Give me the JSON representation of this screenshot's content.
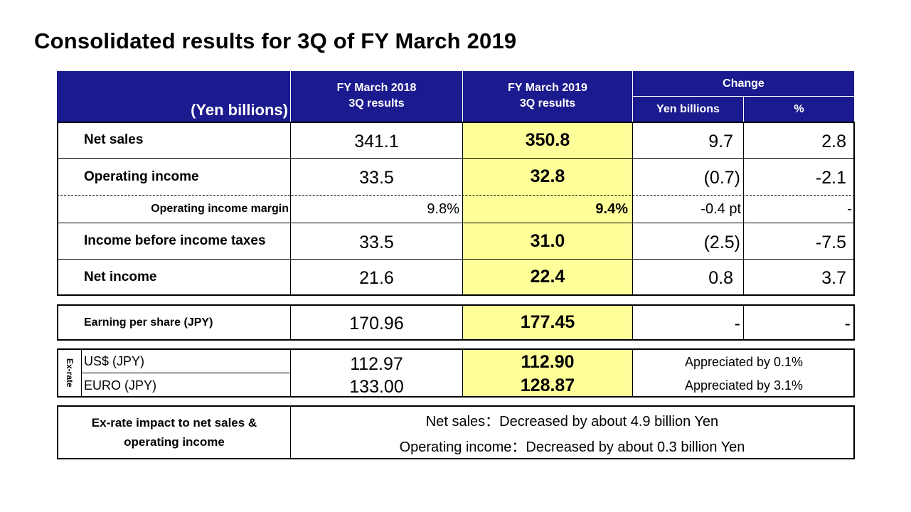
{
  "title": "Consolidated results for 3Q of FY March 2019",
  "header": {
    "unit": "(Yen billions)",
    "col_2018": [
      "FY March 2018",
      "3Q results"
    ],
    "col_2019": [
      "FY March 2019",
      "3Q results"
    ],
    "change": "Change",
    "change_yen": "Yen billions",
    "change_pct": "%"
  },
  "rows": [
    {
      "label": "Net sales",
      "fy2018": "341.1",
      "fy2019": "350.8",
      "change_yen": "9.7",
      "change_pct": "2.8"
    },
    {
      "label": "Operating income",
      "fy2018": "33.5",
      "fy2019": "32.8",
      "change_yen": "(0.7)",
      "change_pct": "-2.1"
    },
    {
      "label": "Operating income margin",
      "fy2018": "9.8%",
      "fy2019": "9.4%",
      "change_yen": "-0.4 pt",
      "change_pct": "-"
    },
    {
      "label": "Income before income taxes",
      "fy2018": "33.5",
      "fy2019": "31.0",
      "change_yen": "(2.5)",
      "change_pct": "-7.5"
    },
    {
      "label": "Net income",
      "fy2018": "21.6",
      "fy2019": "22.4",
      "change_yen": "0.8",
      "change_pct": "3.7"
    }
  ],
  "eps": {
    "label": "Earning per share (JPY)",
    "fy2018": "170.96",
    "fy2019": "177.45",
    "change_yen": "-",
    "change_pct": "-"
  },
  "exrate": {
    "side_label": "Ex-rate",
    "usd": {
      "label": "US$ (JPY)",
      "fy2018": "112.97",
      "fy2019": "112.90",
      "change": "Appreciated by 0.1%"
    },
    "euro": {
      "label": "EURO (JPY)",
      "fy2018": "133.00",
      "fy2019": "128.87",
      "change": "Appreciated by 3.1%"
    }
  },
  "impact": {
    "label_line1": "Ex-rate impact to net sales &",
    "label_line2": "operating income",
    "net_sales": "Net sales：Decreased by about 4.9 billion Yen",
    "operating_income": "Operating income：Decreased by about 0.3 billion Yen"
  },
  "colors": {
    "header_bg": "#1b1b8f",
    "highlight": "#ffff99"
  }
}
